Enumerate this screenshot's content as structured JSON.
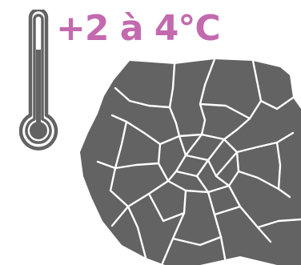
{
  "headline": {
    "text": "+2 à 4°C",
    "color": "#c36aaf"
  },
  "thermometer": {
    "icon": "thermometer-icon",
    "color": "#636363"
  },
  "map": {
    "icon": "paris-arrondissements-map",
    "fill": "#636363",
    "border": "#ffffff"
  }
}
